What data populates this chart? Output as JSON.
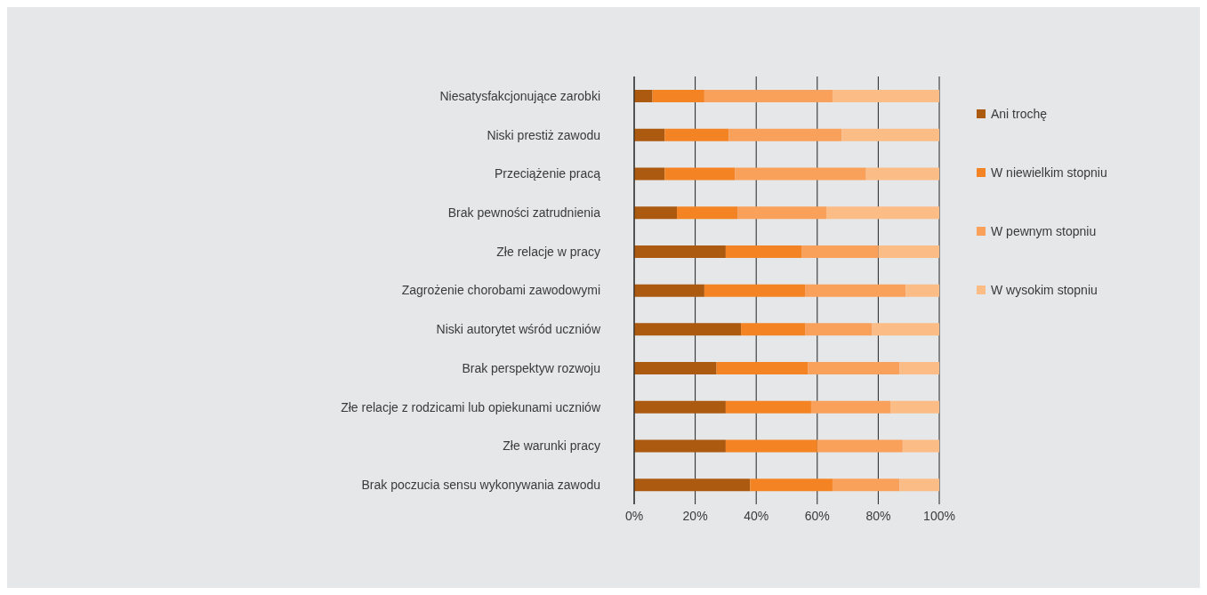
{
  "chart_data": {
    "type": "bar",
    "orientation": "horizontal",
    "stacked": true,
    "categories": [
      "Niesatysfakcjonujące zarobki",
      "Niski prestiż zawodu",
      "Przeciążenie pracą",
      "Brak pewności zatrudnienia",
      "Złe relacje w pracy",
      "Zagrożenie chorobami zawodowymi",
      "Niski autorytet wśród uczniów",
      "Brak perspektyw rozwoju",
      "Złe relacje z rodzicami lub opiekunami uczniów",
      "Złe warunki pracy",
      "Brak poczucia sensu wykonywania zawodu"
    ],
    "series": [
      {
        "name": "Ani trochę",
        "color": "#ab5a10",
        "values": [
          6,
          10,
          10,
          14,
          30,
          23,
          35,
          27,
          30,
          30,
          38
        ]
      },
      {
        "name": "W niewielkim stopniu",
        "color": "#f48423",
        "values": [
          17,
          21,
          23,
          20,
          25,
          33,
          21,
          30,
          28,
          30,
          27
        ]
      },
      {
        "name": "W pewnym stopniu",
        "color": "#f9a05a",
        "values": [
          42,
          37,
          43,
          29,
          25,
          33,
          22,
          30,
          26,
          28,
          22
        ]
      },
      {
        "name": "W wysokim stopniu",
        "color": "#fbbc86",
        "values": [
          35,
          32,
          24,
          37,
          20,
          11,
          22,
          13,
          16,
          12,
          13
        ]
      }
    ],
    "xlim": [
      0,
      100
    ],
    "xticks": [
      {
        "value": 0,
        "label": "0%"
      },
      {
        "value": 20,
        "label": "20%"
      },
      {
        "value": 40,
        "label": "40%"
      },
      {
        "value": 60,
        "label": "60%"
      },
      {
        "value": 80,
        "label": "80%"
      },
      {
        "value": 100,
        "label": "100%"
      }
    ],
    "grid": "x",
    "legend": "right"
  }
}
